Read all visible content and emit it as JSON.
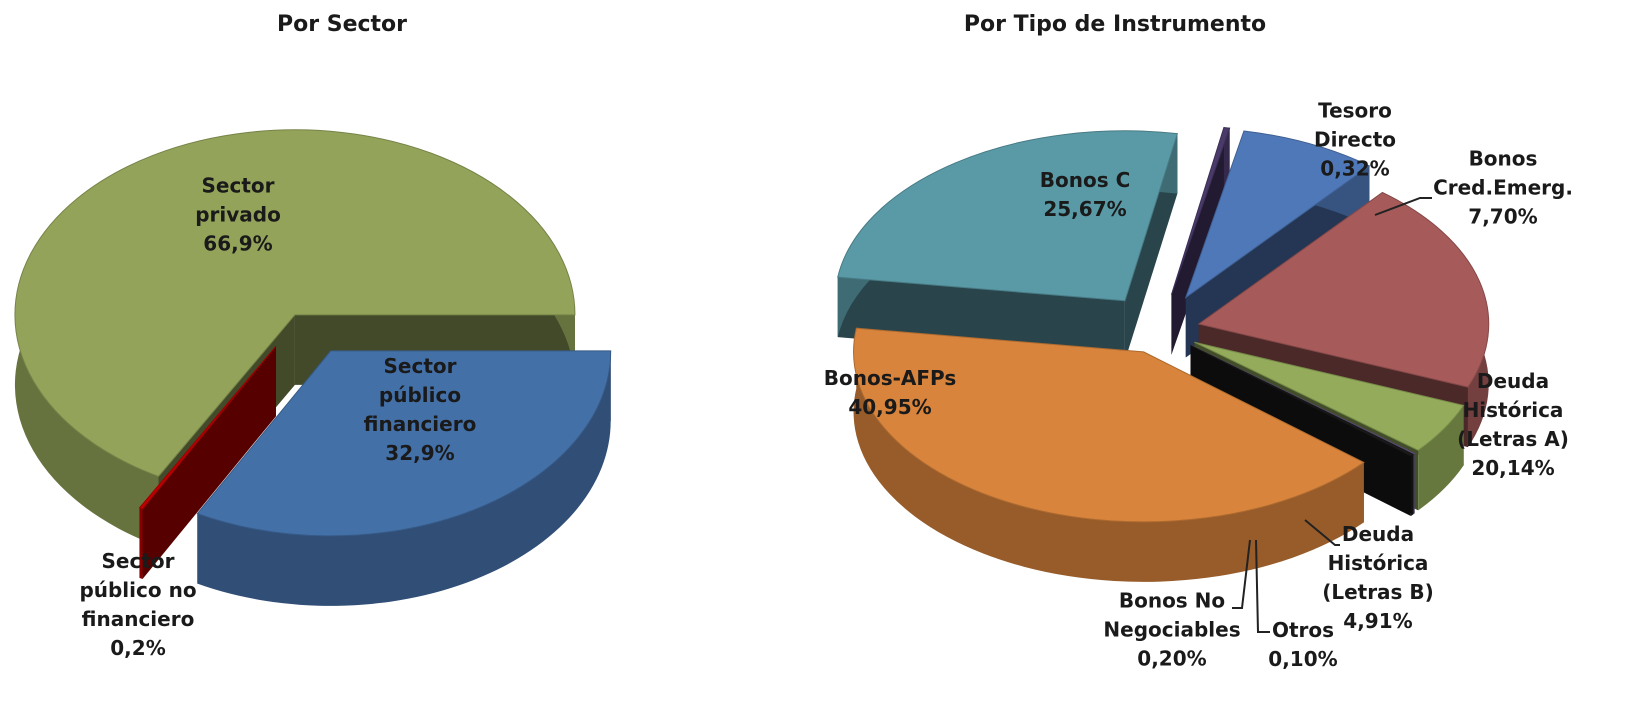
{
  "chart_data": [
    {
      "type": "pie",
      "title": "Por Sector",
      "categories": [
        "Sector público financiero",
        "Sector público no financiero",
        "Sector privado"
      ],
      "values": [
        32.9,
        0.2,
        66.9
      ],
      "value_labels": [
        "32,9%",
        "0,2%",
        "66,9%"
      ],
      "colors": [
        "#4470a8",
        "#c00000",
        "#93a45a"
      ]
    },
    {
      "type": "pie",
      "title": "Por Tipo de Instrumento",
      "categories": [
        "Bonos C",
        "Tesoro Directo",
        "Bonos Cred.Emerg.",
        "Deuda Histórica (Letras A)",
        "Deuda Histórica (Letras B)",
        "Otros",
        "Bonos No Negociables",
        "Bonos-AFPs"
      ],
      "values": [
        25.67,
        0.32,
        7.7,
        20.14,
        4.91,
        0.1,
        0.2,
        40.95
      ],
      "value_labels": [
        "25,67%",
        "0,32%",
        "7,70%",
        "20,14%",
        "4,91%",
        "0,10%",
        "0,20%",
        "40,95%"
      ],
      "colors": [
        "#5a9aa6",
        "#4a3a6a",
        "#4f78b8",
        "#a65a5a",
        "#93ab5a",
        "#6a5a8a",
        "#1a1a1a",
        "#d8843c"
      ]
    }
  ]
}
